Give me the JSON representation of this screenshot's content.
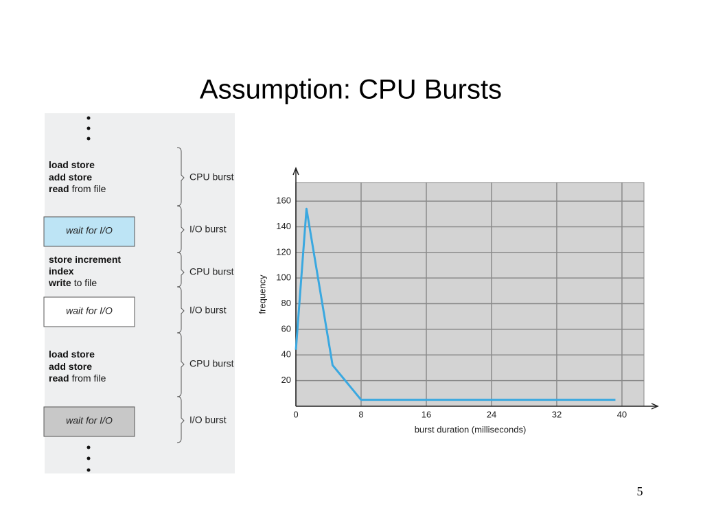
{
  "title": "Assumption: CPU Bursts",
  "diagram": {
    "segments": [
      {
        "lines": [
          {
            "bold": "load store"
          },
          {
            "bold": "add store"
          },
          {
            "bold": "read",
            "rest": "from file"
          }
        ],
        "label": "CPU burst"
      },
      {
        "box": "wait for I/O",
        "label": "I/O burst"
      },
      {
        "lines": [
          {
            "bold": "store increment"
          },
          {
            "bold": "index"
          },
          {
            "bold": "write",
            "rest": "to file"
          }
        ],
        "label": "CPU burst"
      },
      {
        "box": "wait for I/O",
        "label": "I/O burst"
      },
      {
        "lines": [
          {
            "bold": "load store"
          },
          {
            "bold": "add store"
          },
          {
            "bold": "read",
            "rest": "from file"
          }
        ],
        "label": "CPU burst"
      },
      {
        "box": "wait for I/O",
        "label": "I/O burst"
      }
    ]
  },
  "chart_data": {
    "type": "line",
    "x_label": "burst duration (milliseconds)",
    "y_label": "frequency",
    "x": [
      0,
      1.3,
      4.5,
      8,
      39.2
    ],
    "values": [
      44,
      154,
      32,
      5,
      5
    ],
    "color": "#3aa8e0",
    "xlim": [
      0,
      42.7
    ],
    "ylim": [
      0,
      174.5
    ],
    "xticks": [
      0,
      8,
      16,
      24,
      32,
      40
    ],
    "yticks": [
      20,
      40,
      60,
      80,
      100,
      120,
      140,
      160
    ],
    "grid": true
  },
  "page_number": "5"
}
